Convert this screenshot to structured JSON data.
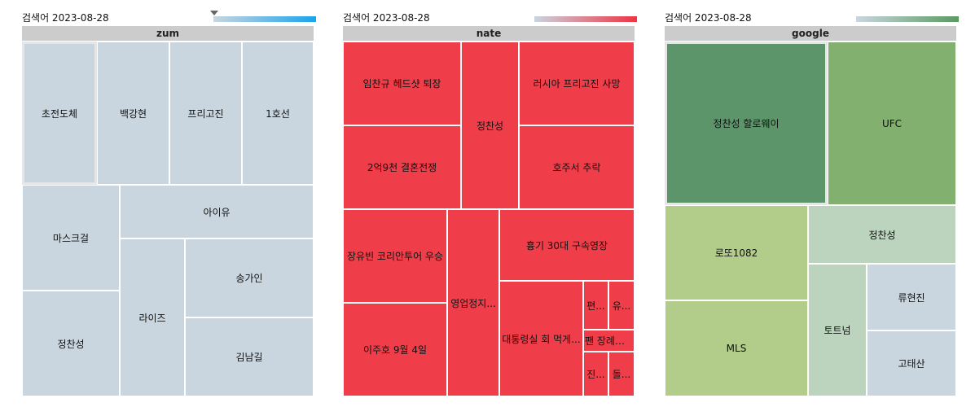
{
  "colors": {
    "zum": "#c9d6df",
    "nate": "#ef3e4a",
    "google_top1": "#5b9569",
    "google_top2": "#82b06e",
    "google_green": "#b2cd89",
    "google_pale": "#bcd3bd",
    "google_blue": "#c9d6df",
    "zum_legend": [
      "#c9d6df",
      "#1aa3ec"
    ],
    "nate_legend": [
      "#c9d6df",
      "#ee3344"
    ],
    "google_legend": [
      "#c9d6df",
      "#5a9a60"
    ]
  },
  "panels": [
    {
      "title": "검색어 2023-08-28",
      "header": "zum"
    },
    {
      "title": "검색어 2023-08-28",
      "header": "nate"
    },
    {
      "title": "검색어 2023-08-28",
      "header": "google"
    }
  ],
  "chart_data": [
    {
      "type": "treemap",
      "title": "검색어 2023-08-28",
      "header": "zum",
      "items": [
        {
          "label": "초전도체"
        },
        {
          "label": "백강현"
        },
        {
          "label": "프리고진"
        },
        {
          "label": "1호선"
        },
        {
          "label": "마스크걸"
        },
        {
          "label": "아이유"
        },
        {
          "label": "정찬성"
        },
        {
          "label": "라이즈"
        },
        {
          "label": "송가인"
        },
        {
          "label": "김남길"
        }
      ]
    },
    {
      "type": "treemap",
      "title": "검색어 2023-08-28",
      "header": "nate",
      "items": [
        {
          "label": "임찬규 헤드샷 퇴장"
        },
        {
          "label": "정찬성"
        },
        {
          "label": "러시아 프리고진 사망"
        },
        {
          "label": "2억9천 결혼전쟁"
        },
        {
          "label": "호주서 추락"
        },
        {
          "label": "장유빈 코리안투어 우승"
        },
        {
          "label": "영업정지..."
        },
        {
          "label": "흉기 30대 구속영장"
        },
        {
          "label": "이주호 9월 4일"
        },
        {
          "label": "대통령실 회 먹게..."
        },
        {
          "label": "편..."
        },
        {
          "label": "유..."
        },
        {
          "label": "팬 장례식..."
        },
        {
          "label": "진..."
        },
        {
          "label": "돌..."
        }
      ]
    },
    {
      "type": "treemap",
      "title": "검색어 2023-08-28",
      "header": "google",
      "items": [
        {
          "label": "정찬성 할로웨이"
        },
        {
          "label": "UFC"
        },
        {
          "label": "로또1082"
        },
        {
          "label": "정찬성"
        },
        {
          "label": "MLS"
        },
        {
          "label": "토트넘"
        },
        {
          "label": "류현진"
        },
        {
          "label": "고태산"
        }
      ]
    }
  ]
}
